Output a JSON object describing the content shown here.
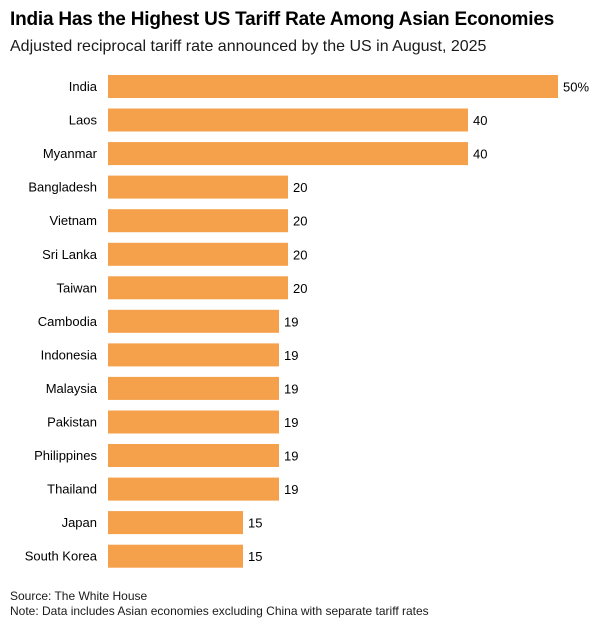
{
  "chart_data": {
    "type": "bar",
    "orientation": "horizontal",
    "title": "India Has the Highest US Tariff Rate Among Asian Economies",
    "subtitle": "Adjusted reciprocal tariff rate announced by the US in August, 2025",
    "categories": [
      "India",
      "Laos",
      "Myanmar",
      "Bangladesh",
      "Vietnam",
      "Sri Lanka",
      "Taiwan",
      "Cambodia",
      "Indonesia",
      "Malaysia",
      "Pakistan",
      "Philippines",
      "Thailand",
      "Japan",
      "South Korea"
    ],
    "values": [
      50,
      40,
      40,
      20,
      20,
      20,
      20,
      19,
      19,
      19,
      19,
      19,
      19,
      15,
      15
    ],
    "value_labels": [
      "50%",
      "40",
      "40",
      "20",
      "20",
      "20",
      "20",
      "19",
      "19",
      "19",
      "19",
      "19",
      "19",
      "15",
      "15"
    ],
    "xlim": [
      0,
      50
    ],
    "grid": false,
    "legend": "none",
    "bar_color": "#F5A04A"
  },
  "footer": {
    "source": "Source: The White House",
    "note": "Note: Data includes Asian economies excluding China with separate tariff rates"
  }
}
